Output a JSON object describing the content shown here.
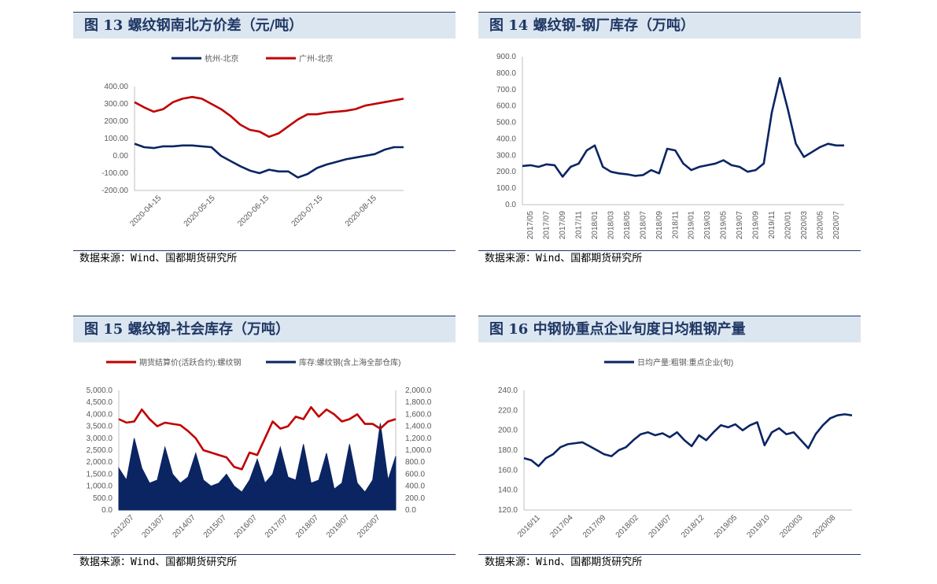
{
  "colors": {
    "navy": "#0b2563",
    "red": "#c00000",
    "title_bg": "#dce6f1",
    "title_text": "#1f3864"
  },
  "panels": [
    {
      "title": "图 13 螺纹钢南北方价差（元/吨）",
      "source": "数据来源：Wind、国都期货研究所"
    },
    {
      "title": "图 14 螺纹钢-钢厂库存（万吨）",
      "source": "数据来源：Wind、国都期货研究所"
    },
    {
      "title": "图 15 螺纹钢-社会库存（万吨）",
      "source": "数据来源：Wind、国都期货研究所"
    },
    {
      "title": "图 16 中钢协重点企业旬度日均粗钢产量",
      "source": "数据来源：Wind、国都期货研究所"
    }
  ],
  "chart_data": [
    {
      "type": "line",
      "legend": [
        "杭州-北京",
        "广州-北京"
      ],
      "ylim": [
        -200,
        400
      ],
      "yticks": [
        "400.00",
        "300.00",
        "200.00",
        "100.00",
        "0.00",
        "-100.00",
        "-200.00"
      ],
      "xticks": [
        "2020-04-15",
        "2020-05-15",
        "2020-06-15",
        "2020-07-15",
        "2020-08-15"
      ],
      "x": [
        0,
        5,
        10,
        15,
        20,
        25,
        30,
        35,
        40,
        45,
        50,
        55,
        60,
        65,
        70,
        75,
        80,
        85,
        90,
        95,
        100,
        105,
        110,
        115,
        120,
        125,
        130,
        135,
        140
      ],
      "series": [
        {
          "name": "杭州-北京",
          "color": "navy",
          "values": [
            70,
            50,
            45,
            55,
            55,
            60,
            60,
            55,
            50,
            0,
            -30,
            -60,
            -85,
            -100,
            -80,
            -90,
            -90,
            -125,
            -105,
            -70,
            -50,
            -35,
            -20,
            -10,
            0,
            10,
            35,
            50,
            50
          ]
        },
        {
          "name": "广州-北京",
          "color": "red",
          "values": [
            310,
            280,
            255,
            270,
            310,
            330,
            340,
            330,
            300,
            270,
            230,
            180,
            150,
            140,
            110,
            130,
            170,
            210,
            240,
            240,
            250,
            255,
            260,
            270,
            290,
            300,
            310,
            320,
            330
          ]
        }
      ],
      "legend_pos": "top"
    },
    {
      "type": "line",
      "ylim": [
        0,
        900
      ],
      "yticks": [
        "900.0",
        "800.0",
        "700.0",
        "600.0",
        "500.0",
        "400.0",
        "300.0",
        "200.0",
        "100.0",
        "0.0"
      ],
      "xticks": [
        "2017/05",
        "2017/07",
        "2017/09",
        "2017/11",
        "2018/01",
        "2018/03",
        "2018/05",
        "2018/07",
        "2018/09",
        "2018/11",
        "2019/01",
        "2019/03",
        "2019/05",
        "2019/07",
        "2019/09",
        "2019/11",
        "2020/01",
        "2020/03",
        "2020/05",
        "2020/07"
      ],
      "x": [
        0,
        1,
        2,
        3,
        4,
        5,
        6,
        7,
        8,
        9,
        10,
        11,
        12,
        13,
        14,
        15,
        16,
        17,
        18,
        19,
        20,
        21,
        22,
        23,
        24,
        25,
        26,
        27,
        28,
        29,
        30,
        31,
        32,
        33,
        34,
        35,
        36,
        37,
        38,
        39,
        40
      ],
      "series": [
        {
          "name": "",
          "color": "navy",
          "values": [
            235,
            240,
            230,
            245,
            240,
            170,
            230,
            250,
            330,
            360,
            230,
            200,
            190,
            185,
            175,
            180,
            210,
            190,
            340,
            330,
            250,
            210,
            230,
            240,
            250,
            270,
            240,
            230,
            200,
            210,
            250,
            560,
            770,
            580,
            370,
            290,
            320,
            350,
            370,
            360,
            360
          ]
        }
      ]
    },
    {
      "type": "area",
      "legend": [
        "期货结算价(活跃合约):螺纹钢",
        "库存:螺纹钢(含上海全部仓库)"
      ],
      "ylim": [
        0,
        5000
      ],
      "y2lim": [
        0,
        2000
      ],
      "yticks": [
        "5,000.0",
        "4,500.0",
        "4,000.0",
        "3,500.0",
        "3,000.0",
        "2,500.0",
        "2,000.0",
        "1,500.0",
        "1,000.0",
        "500.0",
        "0.0"
      ],
      "y2ticks": [
        "2,000.0",
        "1,800.0",
        "1,600.0",
        "1,400.0",
        "1,200.0",
        "1,000.0",
        "800.0",
        "600.0",
        "400.0",
        "200.0",
        "0.0"
      ],
      "xticks": [
        "2012/07",
        "2013/07",
        "2014/07",
        "2015/07",
        "2016/07",
        "2017/07",
        "2018/07",
        "2019/07",
        "2020/07"
      ],
      "x": [
        0,
        0.5,
        1,
        1.5,
        2,
        2.5,
        3,
        3.5,
        4,
        4.5,
        5,
        5.5,
        6,
        6.5,
        7,
        7.5,
        8,
        8.5,
        9,
        9.5,
        10,
        10.5,
        11,
        11.5,
        12,
        12.5,
        13,
        13.5,
        14,
        14.5,
        15,
        15.5,
        16,
        16.5,
        17,
        17.5,
        18
      ],
      "series": [
        {
          "name": "期货结算价(活跃合约):螺纹钢",
          "color": "red",
          "axis": "left",
          "values": [
            3800,
            3650,
            3700,
            4200,
            3800,
            3500,
            3650,
            3600,
            3550,
            3300,
            3000,
            2500,
            2400,
            2300,
            2200,
            1800,
            1700,
            2400,
            2300,
            3000,
            3700,
            3400,
            3500,
            3900,
            3800,
            4300,
            3900,
            4200,
            4000,
            3700,
            3800,
            4000,
            3600,
            3600,
            3400,
            3700,
            3800
          ]
        },
        {
          "name": "库存:螺纹钢(含上海全部仓库)",
          "color": "navy",
          "axis": "right",
          "values": [
            700,
            500,
            1200,
            700,
            450,
            500,
            1050,
            600,
            450,
            550,
            950,
            500,
            400,
            450,
            600,
            400,
            300,
            500,
            850,
            450,
            600,
            1050,
            550,
            500,
            1100,
            450,
            500,
            950,
            350,
            450,
            1100,
            450,
            300,
            500,
            1450,
            500,
            900
          ]
        }
      ],
      "legend_pos": "top"
    },
    {
      "type": "line",
      "legend": [
        "日均产量:粗钢:重点企业(旬)"
      ],
      "ylim": [
        120,
        240
      ],
      "yticks": [
        "240.0",
        "220.0",
        "200.0",
        "180.0",
        "160.0",
        "140.0",
        "120.0"
      ],
      "xticks": [
        "2016/11",
        "2017/04",
        "2017/09",
        "2018/02",
        "2018/07",
        "2018/12",
        "2019/05",
        "2019/10",
        "2020/03",
        "2020/08"
      ],
      "x": [
        0,
        1,
        2,
        3,
        4,
        5,
        6,
        7,
        8,
        9,
        10,
        11,
        12,
        13,
        14,
        15,
        16,
        17,
        18,
        19,
        20,
        21,
        22,
        23,
        24,
        25,
        26,
        27,
        28,
        29,
        30,
        31,
        32,
        33,
        34,
        35,
        36,
        37,
        38,
        39,
        40,
        41,
        42,
        43,
        44,
        45
      ],
      "series": [
        {
          "name": "日均产量:粗钢:重点企业(旬)",
          "color": "navy",
          "values": [
            172,
            170,
            164,
            172,
            176,
            183,
            186,
            187,
            188,
            184,
            180,
            176,
            174,
            180,
            183,
            190,
            196,
            198,
            195,
            197,
            193,
            198,
            190,
            184,
            195,
            190,
            198,
            205,
            203,
            206,
            200,
            205,
            208,
            185,
            198,
            202,
            196,
            198,
            190,
            182,
            196,
            205,
            212,
            215,
            216,
            215
          ]
        }
      ],
      "legend_pos": "top"
    }
  ]
}
